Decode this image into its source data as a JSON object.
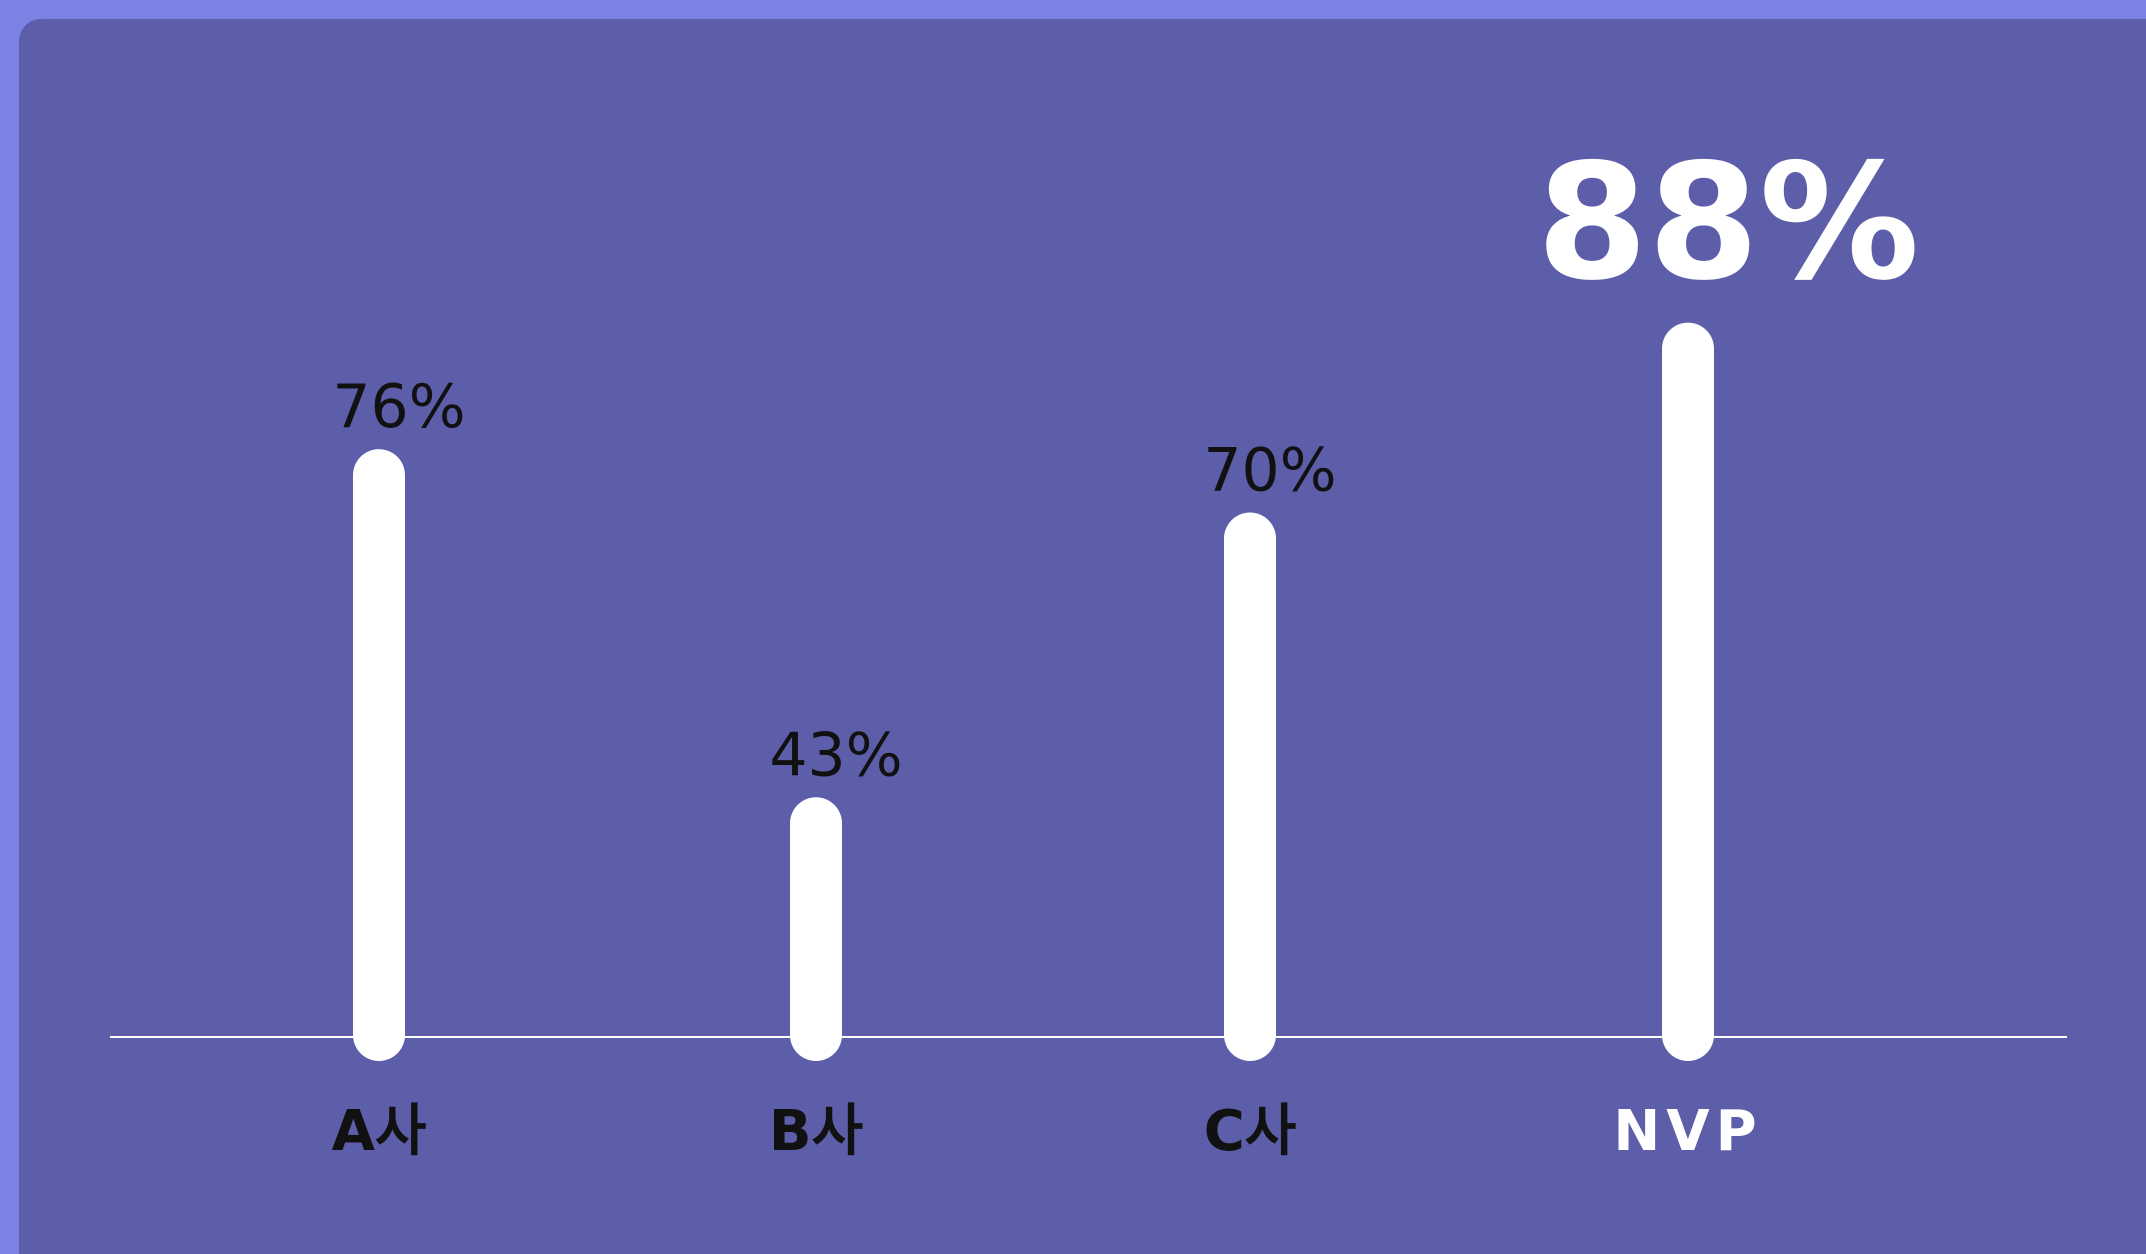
{
  "chart_data": {
    "type": "bar",
    "categories": [
      "A사",
      "B사",
      "C사",
      "NVP"
    ],
    "values": [
      76,
      43,
      70,
      88
    ],
    "value_labels": [
      "76%",
      "43%",
      "70%",
      "88%"
    ],
    "color": "#ffffff",
    "label_colors": [
      "#111111",
      "#111111",
      "#111111",
      "#ffffff"
    ],
    "ylim": [
      18,
      100
    ]
  }
}
